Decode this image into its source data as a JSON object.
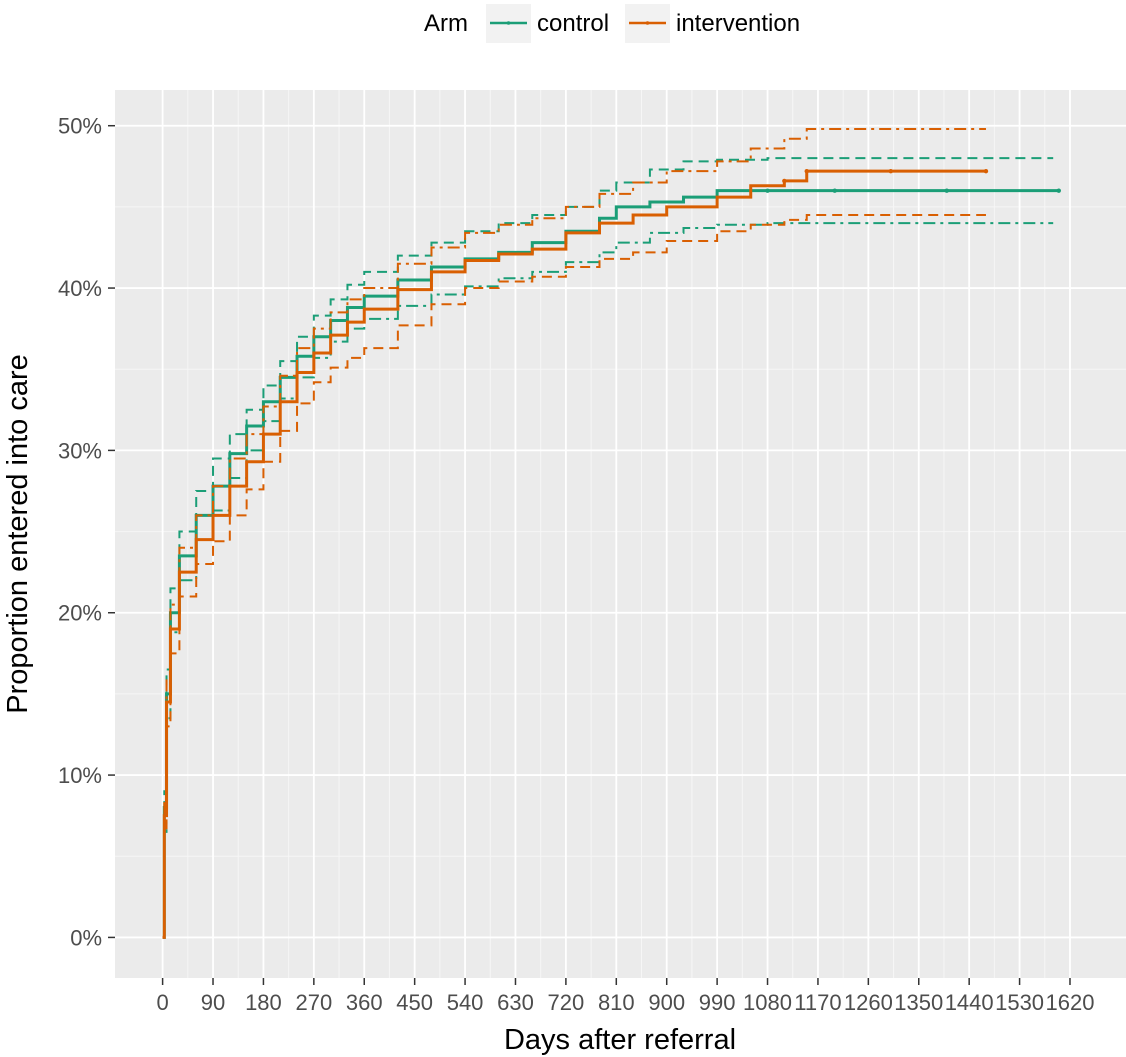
{
  "chart_data": {
    "type": "line",
    "xlabel": "Days after referral",
    "ylabel": "Proportion entered into care",
    "xlim": [
      -85,
      1720
    ],
    "ylim": [
      -2.5,
      52.2
    ],
    "x_ticks": [
      0,
      90,
      180,
      270,
      360,
      450,
      540,
      630,
      720,
      810,
      900,
      990,
      1080,
      1170,
      1260,
      1350,
      1440,
      1530,
      1620
    ],
    "x_tick_labels": [
      "0",
      "90",
      "180",
      "270",
      "360",
      "450",
      "540",
      "630",
      "720",
      "810",
      "900",
      "990",
      "1080",
      "1170",
      "1260",
      "1350",
      "1440",
      "1530",
      "1620"
    ],
    "y_ticks": [
      0,
      10,
      20,
      30,
      40,
      50
    ],
    "y_tick_labels": [
      "0%",
      "10%",
      "20%",
      "30%",
      "40%",
      "50%"
    ],
    "grid": true,
    "legend": {
      "title": "Arm",
      "position": "top"
    },
    "series": [
      {
        "name": "control",
        "color": "#1b9e77",
        "estimate": [
          [
            0,
            0
          ],
          [
            3,
            8
          ],
          [
            7,
            15
          ],
          [
            14,
            20
          ],
          [
            30,
            23.5
          ],
          [
            60,
            26
          ],
          [
            90,
            27.8
          ],
          [
            120,
            29.8
          ],
          [
            150,
            31.5
          ],
          [
            180,
            33
          ],
          [
            210,
            34.5
          ],
          [
            240,
            35.8
          ],
          [
            270,
            37
          ],
          [
            300,
            38
          ],
          [
            330,
            38.8
          ],
          [
            360,
            39.5
          ],
          [
            420,
            40.5
          ],
          [
            480,
            41.3
          ],
          [
            540,
            41.8
          ],
          [
            600,
            42.2
          ],
          [
            660,
            42.8
          ],
          [
            720,
            43.5
          ],
          [
            780,
            44.3
          ],
          [
            810,
            45
          ],
          [
            870,
            45.3
          ],
          [
            930,
            45.6
          ],
          [
            990,
            46
          ],
          [
            1080,
            46
          ],
          [
            1200,
            46
          ],
          [
            1400,
            46
          ],
          [
            1600,
            46
          ]
        ],
        "upper": [
          [
            0,
            0
          ],
          [
            3,
            9
          ],
          [
            7,
            16.5
          ],
          [
            14,
            21.5
          ],
          [
            30,
            25
          ],
          [
            60,
            27.5
          ],
          [
            90,
            29.5
          ],
          [
            120,
            31
          ],
          [
            150,
            32.5
          ],
          [
            180,
            34
          ],
          [
            210,
            35.5
          ],
          [
            240,
            37
          ],
          [
            270,
            38.3
          ],
          [
            300,
            39.3
          ],
          [
            330,
            40.2
          ],
          [
            360,
            41
          ],
          [
            420,
            42
          ],
          [
            480,
            42.8
          ],
          [
            540,
            43.5
          ],
          [
            600,
            44
          ],
          [
            660,
            44.5
          ],
          [
            720,
            45
          ],
          [
            780,
            46
          ],
          [
            810,
            46.5
          ],
          [
            870,
            47.3
          ],
          [
            930,
            47.8
          ],
          [
            990,
            47.9
          ],
          [
            1080,
            48
          ],
          [
            1200,
            48
          ],
          [
            1400,
            48
          ],
          [
            1590,
            48
          ]
        ],
        "lower": [
          [
            0,
            0
          ],
          [
            3,
            6.5
          ],
          [
            7,
            13.5
          ],
          [
            14,
            18.8
          ],
          [
            30,
            22
          ],
          [
            60,
            24.5
          ],
          [
            90,
            26.3
          ],
          [
            120,
            28.3
          ],
          [
            150,
            30
          ],
          [
            180,
            31.8
          ],
          [
            210,
            33.2
          ],
          [
            240,
            34.5
          ],
          [
            270,
            35.7
          ],
          [
            300,
            36.7
          ],
          [
            330,
            37.5
          ],
          [
            360,
            38.1
          ],
          [
            420,
            38.9
          ],
          [
            480,
            39.6
          ],
          [
            540,
            40.1
          ],
          [
            600,
            40.6
          ],
          [
            660,
            41
          ],
          [
            720,
            41.6
          ],
          [
            780,
            42.2
          ],
          [
            810,
            42.8
          ],
          [
            870,
            43.4
          ],
          [
            930,
            43.7
          ],
          [
            990,
            43.9
          ],
          [
            1080,
            44
          ],
          [
            1200,
            44
          ],
          [
            1400,
            44
          ],
          [
            1590,
            44
          ]
        ]
      },
      {
        "name": "intervention",
        "color": "#d95f02",
        "estimate": [
          [
            0,
            0
          ],
          [
            3,
            7.5
          ],
          [
            7,
            14.5
          ],
          [
            14,
            19
          ],
          [
            30,
            22.5
          ],
          [
            60,
            24.5
          ],
          [
            90,
            26
          ],
          [
            120,
            27.8
          ],
          [
            150,
            29.3
          ],
          [
            180,
            31
          ],
          [
            210,
            33
          ],
          [
            240,
            34.8
          ],
          [
            270,
            36
          ],
          [
            300,
            37.1
          ],
          [
            330,
            37.9
          ],
          [
            360,
            38.7
          ],
          [
            420,
            39.9
          ],
          [
            480,
            41
          ],
          [
            540,
            41.7
          ],
          [
            600,
            42.1
          ],
          [
            660,
            42.4
          ],
          [
            720,
            43.4
          ],
          [
            780,
            44
          ],
          [
            840,
            44.5
          ],
          [
            900,
            45
          ],
          [
            990,
            45.6
          ],
          [
            1050,
            46.3
          ],
          [
            1110,
            46.6
          ],
          [
            1150,
            47.2
          ],
          [
            1300,
            47.2
          ],
          [
            1470,
            47.2
          ]
        ],
        "upper": [
          [
            0,
            0
          ],
          [
            3,
            8.5
          ],
          [
            7,
            16
          ],
          [
            14,
            20.5
          ],
          [
            30,
            24
          ],
          [
            60,
            26
          ],
          [
            90,
            27.8
          ],
          [
            120,
            29.5
          ],
          [
            150,
            31
          ],
          [
            180,
            32.7
          ],
          [
            210,
            34.6
          ],
          [
            240,
            36.3
          ],
          [
            270,
            37.5
          ],
          [
            300,
            38.5
          ],
          [
            330,
            39.3
          ],
          [
            360,
            40
          ],
          [
            420,
            41.5
          ],
          [
            480,
            42.5
          ],
          [
            540,
            43.4
          ],
          [
            600,
            43.9
          ],
          [
            660,
            44.3
          ],
          [
            720,
            45
          ],
          [
            780,
            45.8
          ],
          [
            840,
            46.5
          ],
          [
            900,
            47.2
          ],
          [
            990,
            47.8
          ],
          [
            1050,
            48.6
          ],
          [
            1110,
            49.2
          ],
          [
            1150,
            49.8
          ],
          [
            1300,
            49.8
          ],
          [
            1470,
            49.8
          ]
        ],
        "lower": [
          [
            0,
            0
          ],
          [
            3,
            6.5
          ],
          [
            7,
            13
          ],
          [
            14,
            17.5
          ],
          [
            30,
            21
          ],
          [
            60,
            23
          ],
          [
            90,
            24.4
          ],
          [
            120,
            26
          ],
          [
            150,
            27.6
          ],
          [
            180,
            29.3
          ],
          [
            210,
            31.2
          ],
          [
            240,
            32.9
          ],
          [
            270,
            34.2
          ],
          [
            300,
            35.1
          ],
          [
            330,
            35.7
          ],
          [
            360,
            36.3
          ],
          [
            420,
            37.7
          ],
          [
            480,
            39
          ],
          [
            540,
            40
          ],
          [
            600,
            40.4
          ],
          [
            660,
            40.7
          ],
          [
            720,
            41.3
          ],
          [
            780,
            41.8
          ],
          [
            840,
            42.2
          ],
          [
            900,
            42.9
          ],
          [
            990,
            43.5
          ],
          [
            1050,
            43.9
          ],
          [
            1110,
            44.2
          ],
          [
            1150,
            44.5
          ],
          [
            1300,
            44.5
          ],
          [
            1470,
            44.5
          ]
        ]
      }
    ]
  }
}
